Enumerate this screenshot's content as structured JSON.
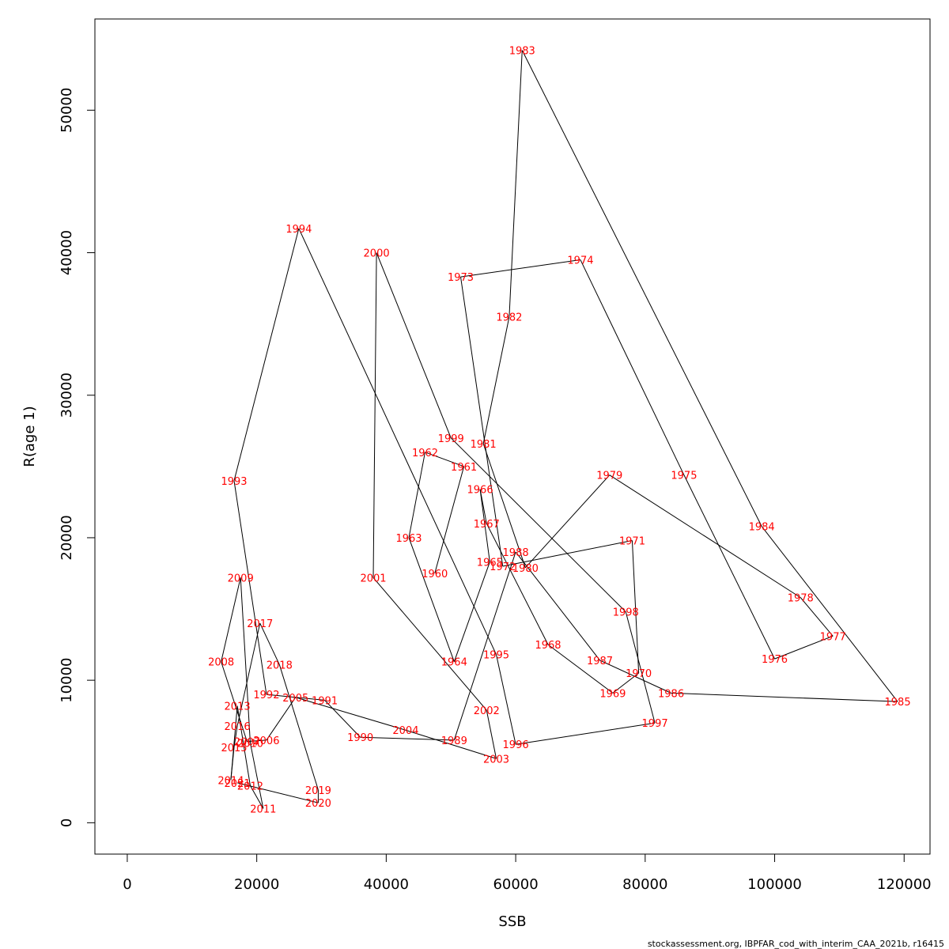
{
  "chart_data": {
    "type": "line",
    "xlabel": "SSB",
    "ylabel": "R(age 1)",
    "xlim": [
      -5000,
      124000
    ],
    "ylim": [
      -2200,
      56400
    ],
    "x_ticks": [
      0,
      20000,
      40000,
      60000,
      80000,
      100000,
      120000
    ],
    "x_tick_labels": [
      "0",
      "20000",
      "40000",
      "60000",
      "80000",
      "100000",
      "120000"
    ],
    "y_ticks": [
      0,
      10000,
      20000,
      30000,
      40000,
      50000
    ],
    "y_tick_labels": [
      "0",
      "10000",
      "20000",
      "30000",
      "40000",
      "50000"
    ],
    "grid": false,
    "line_color": "#000000",
    "label_color": "#ff0000",
    "points": [
      {
        "year": "1960",
        "x": 47500,
        "y": 17500
      },
      {
        "year": "1961",
        "x": 52000,
        "y": 25000
      },
      {
        "year": "1962",
        "x": 46000,
        "y": 26000
      },
      {
        "year": "1963",
        "x": 43500,
        "y": 20000
      },
      {
        "year": "1964",
        "x": 50500,
        "y": 11300
      },
      {
        "year": "1965",
        "x": 56000,
        "y": 18300
      },
      {
        "year": "1966",
        "x": 54500,
        "y": 23400
      },
      {
        "year": "1967",
        "x": 55500,
        "y": 21000
      },
      {
        "year": "1968",
        "x": 65000,
        "y": 12500
      },
      {
        "year": "1969",
        "x": 75000,
        "y": 9100
      },
      {
        "year": "1970",
        "x": 79000,
        "y": 10500
      },
      {
        "year": "1971",
        "x": 78000,
        "y": 19800
      },
      {
        "year": "1972",
        "x": 58000,
        "y": 18000
      },
      {
        "year": "1973",
        "x": 51500,
        "y": 38300
      },
      {
        "year": "1974",
        "x": 70000,
        "y": 39500
      },
      {
        "year": "1975",
        "x": 86000,
        "y": 24400
      },
      {
        "year": "1976",
        "x": 100000,
        "y": 11500
      },
      {
        "year": "1977",
        "x": 109000,
        "y": 13100
      },
      {
        "year": "1978",
        "x": 104000,
        "y": 15800
      },
      {
        "year": "1979",
        "x": 74500,
        "y": 24400
      },
      {
        "year": "1980",
        "x": 61500,
        "y": 17900
      },
      {
        "year": "1981",
        "x": 55000,
        "y": 26600
      },
      {
        "year": "1982",
        "x": 59000,
        "y": 35500
      },
      {
        "year": "1983",
        "x": 61000,
        "y": 54200
      },
      {
        "year": "1984",
        "x": 98000,
        "y": 20800
      },
      {
        "year": "1985",
        "x": 119000,
        "y": 8500
      },
      {
        "year": "1986",
        "x": 84000,
        "y": 9100
      },
      {
        "year": "1987",
        "x": 73000,
        "y": 11400
      },
      {
        "year": "1988",
        "x": 60000,
        "y": 19000
      },
      {
        "year": "1989",
        "x": 50500,
        "y": 5800
      },
      {
        "year": "1990",
        "x": 36000,
        "y": 6000
      },
      {
        "year": "1991",
        "x": 30500,
        "y": 8600
      },
      {
        "year": "1992",
        "x": 21500,
        "y": 9000
      },
      {
        "year": "1993",
        "x": 16500,
        "y": 24000
      },
      {
        "year": "1994",
        "x": 26500,
        "y": 41700
      },
      {
        "year": "1995",
        "x": 57000,
        "y": 11800
      },
      {
        "year": "1996",
        "x": 60000,
        "y": 5500
      },
      {
        "year": "1997",
        "x": 81500,
        "y": 7000
      },
      {
        "year": "1998",
        "x": 77000,
        "y": 14800
      },
      {
        "year": "1999",
        "x": 50000,
        "y": 27000
      },
      {
        "year": "2000",
        "x": 38500,
        "y": 40000
      },
      {
        "year": "2001",
        "x": 38000,
        "y": 17200
      },
      {
        "year": "2002",
        "x": 55500,
        "y": 7900
      },
      {
        "year": "2003",
        "x": 57000,
        "y": 4500
      },
      {
        "year": "2004",
        "x": 43000,
        "y": 6500
      },
      {
        "year": "2005",
        "x": 26000,
        "y": 8800
      },
      {
        "year": "2006",
        "x": 21500,
        "y": 5800
      },
      {
        "year": "2007",
        "x": 18500,
        "y": 5700
      },
      {
        "year": "2008",
        "x": 14500,
        "y": 11300
      },
      {
        "year": "2009",
        "x": 17500,
        "y": 17200
      },
      {
        "year": "2010",
        "x": 19000,
        "y": 5600
      },
      {
        "year": "2011",
        "x": 21000,
        "y": 1000
      },
      {
        "year": "2012",
        "x": 19000,
        "y": 2600
      },
      {
        "year": "2013",
        "x": 17000,
        "y": 8200
      },
      {
        "year": "2014",
        "x": 16000,
        "y": 3000
      },
      {
        "year": "2015",
        "x": 16500,
        "y": 5300
      },
      {
        "year": "2016",
        "x": 17000,
        "y": 6800
      },
      {
        "year": "2017",
        "x": 20500,
        "y": 14000
      },
      {
        "year": "2018",
        "x": 23500,
        "y": 11100
      },
      {
        "year": "2019",
        "x": 29500,
        "y": 2300
      },
      {
        "year": "2020",
        "x": 29500,
        "y": 1400
      },
      {
        "year": "2021",
        "x": 17000,
        "y": 2800
      }
    ]
  },
  "footer": {
    "source": "stockassessment.org, IBPFAR_cod_with_interim_CAA_2021b, r16415"
  }
}
